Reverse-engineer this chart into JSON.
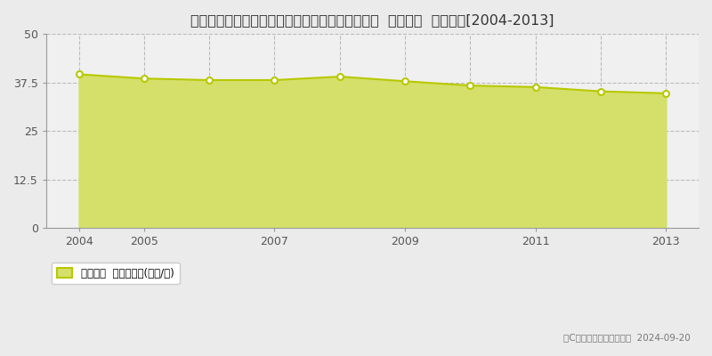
{
  "title": "埼玉県さいたま市見沼区大字御蔵字原前９５番２  公示地価  地価推移[2004-2013]",
  "years": [
    2004,
    2005,
    2006,
    2007,
    2008,
    2009,
    2010,
    2011,
    2012,
    2013
  ],
  "values": [
    39.6,
    38.5,
    38.1,
    38.1,
    39.0,
    37.8,
    36.7,
    36.3,
    35.2,
    34.7
  ],
  "ylim": [
    0,
    50
  ],
  "yticks": [
    0,
    12.5,
    25,
    37.5,
    50
  ],
  "xlim_min": 2003.5,
  "xlim_max": 2013.5,
  "line_color": "#b8c800",
  "fill_color": "#d4e06a",
  "fill_alpha": 1.0,
  "marker_facecolor": "#ffffff",
  "marker_edge_color": "#b8c800",
  "marker_size": 5,
  "background_color": "#ebebeb",
  "plot_bg_color": "#f0f0f0",
  "grid_color": "#bbbbbb",
  "grid_style": "--",
  "title_fontsize": 11.5,
  "tick_fontsize": 9,
  "legend_label": "公示地価  平均嵪単価(万円/嵪)",
  "copyright_text": "（C）土地価格ドットコム  2024-09-20",
  "xticks": [
    2004,
    2005,
    2007,
    2009,
    2011,
    2013
  ],
  "vgrid_years": [
    2004,
    2005,
    2006,
    2007,
    2008,
    2009,
    2010,
    2011,
    2012,
    2013
  ]
}
